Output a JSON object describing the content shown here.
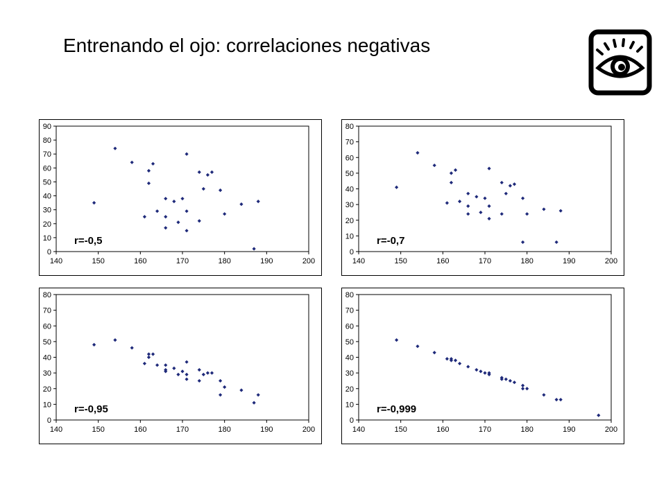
{
  "page": {
    "title": "Entrenando el ojo: correlaciones negativas",
    "logo_icon": "eye-icon"
  },
  "chart_data": [
    {
      "type": "scatter",
      "annotation": "r=-0,5",
      "xlim": [
        140,
        200
      ],
      "ylim": [
        0,
        90
      ],
      "xticks": [
        "140",
        "150",
        "160",
        "170",
        "180",
        "190",
        "200"
      ],
      "yticks": [
        "0",
        "10",
        "20",
        "30",
        "40",
        "50",
        "60",
        "70",
        "80",
        "90"
      ],
      "marker_color": "#1f2a7a",
      "points": [
        [
          149,
          35
        ],
        [
          154,
          74
        ],
        [
          158,
          64
        ],
        [
          161,
          25
        ],
        [
          162,
          58
        ],
        [
          162,
          49
        ],
        [
          163,
          63
        ],
        [
          164,
          29
        ],
        [
          166,
          38
        ],
        [
          166,
          25
        ],
        [
          166,
          17
        ],
        [
          168,
          36
        ],
        [
          169,
          21
        ],
        [
          170,
          38
        ],
        [
          171,
          70
        ],
        [
          171,
          29
        ],
        [
          171,
          15
        ],
        [
          174,
          57
        ],
        [
          174,
          22
        ],
        [
          175,
          45
        ],
        [
          176,
          55
        ],
        [
          177,
          57
        ],
        [
          179,
          44
        ],
        [
          180,
          27
        ],
        [
          184,
          34
        ],
        [
          187,
          2
        ],
        [
          188,
          36
        ]
      ]
    },
    {
      "type": "scatter",
      "annotation": "r=-0,7",
      "xlim": [
        140,
        200
      ],
      "ylim": [
        0,
        80
      ],
      "xticks": [
        "140",
        "150",
        "160",
        "170",
        "180",
        "190",
        "200"
      ],
      "yticks": [
        "0",
        "10",
        "20",
        "30",
        "40",
        "50",
        "60",
        "70",
        "80"
      ],
      "marker_color": "#1f2a7a",
      "points": [
        [
          149,
          41
        ],
        [
          154,
          63
        ],
        [
          158,
          55
        ],
        [
          161,
          31
        ],
        [
          162,
          50
        ],
        [
          162,
          44
        ],
        [
          163,
          52
        ],
        [
          164,
          32
        ],
        [
          166,
          37
        ],
        [
          166,
          29
        ],
        [
          166,
          24
        ],
        [
          168,
          35
        ],
        [
          169,
          25
        ],
        [
          170,
          34
        ],
        [
          171,
          53
        ],
        [
          171,
          29
        ],
        [
          171,
          21
        ],
        [
          174,
          44
        ],
        [
          174,
          24
        ],
        [
          175,
          37
        ],
        [
          176,
          42
        ],
        [
          177,
          43
        ],
        [
          179,
          34
        ],
        [
          179,
          6
        ],
        [
          180,
          24
        ],
        [
          184,
          27
        ],
        [
          187,
          6
        ],
        [
          188,
          26
        ]
      ]
    },
    {
      "type": "scatter",
      "annotation": "r=-0,95",
      "xlim": [
        140,
        200
      ],
      "ylim": [
        0,
        80
      ],
      "xticks": [
        "140",
        "150",
        "160",
        "170",
        "180",
        "190",
        "200"
      ],
      "yticks": [
        "0",
        "10",
        "20",
        "30",
        "40",
        "50",
        "60",
        "70",
        "80"
      ],
      "marker_color": "#1f2a7a",
      "points": [
        [
          149,
          48
        ],
        [
          154,
          51
        ],
        [
          158,
          46
        ],
        [
          161,
          36
        ],
        [
          162,
          42
        ],
        [
          162,
          40
        ],
        [
          163,
          42
        ],
        [
          164,
          35
        ],
        [
          166,
          35
        ],
        [
          166,
          32
        ],
        [
          166,
          31
        ],
        [
          168,
          33
        ],
        [
          169,
          29
        ],
        [
          170,
          31
        ],
        [
          171,
          37
        ],
        [
          171,
          29
        ],
        [
          171,
          26
        ],
        [
          174,
          32
        ],
        [
          174,
          25
        ],
        [
          175,
          29
        ],
        [
          176,
          30
        ],
        [
          177,
          30
        ],
        [
          179,
          25
        ],
        [
          179,
          16
        ],
        [
          180,
          21
        ],
        [
          184,
          19
        ],
        [
          187,
          11
        ],
        [
          188,
          16
        ]
      ]
    },
    {
      "type": "scatter",
      "annotation": "r=-0,999",
      "xlim": [
        140,
        200
      ],
      "ylim": [
        0,
        80
      ],
      "xticks": [
        "140",
        "150",
        "160",
        "170",
        "180",
        "190",
        "200"
      ],
      "yticks": [
        "0",
        "10",
        "20",
        "30",
        "40",
        "50",
        "60",
        "70",
        "80"
      ],
      "marker_color": "#1f2a7a",
      "points": [
        [
          149,
          51
        ],
        [
          154,
          47
        ],
        [
          158,
          43
        ],
        [
          161,
          39
        ],
        [
          162,
          39
        ],
        [
          162,
          38
        ],
        [
          163,
          38
        ],
        [
          164,
          36
        ],
        [
          166,
          34
        ],
        [
          168,
          32
        ],
        [
          169,
          31
        ],
        [
          170,
          30
        ],
        [
          171,
          30
        ],
        [
          171,
          29
        ],
        [
          174,
          27
        ],
        [
          174,
          26
        ],
        [
          175,
          26
        ],
        [
          176,
          25
        ],
        [
          177,
          24
        ],
        [
          179,
          22
        ],
        [
          179,
          20
        ],
        [
          180,
          20
        ],
        [
          184,
          16
        ],
        [
          187,
          13
        ],
        [
          188,
          13
        ],
        [
          197,
          3
        ]
      ]
    }
  ]
}
